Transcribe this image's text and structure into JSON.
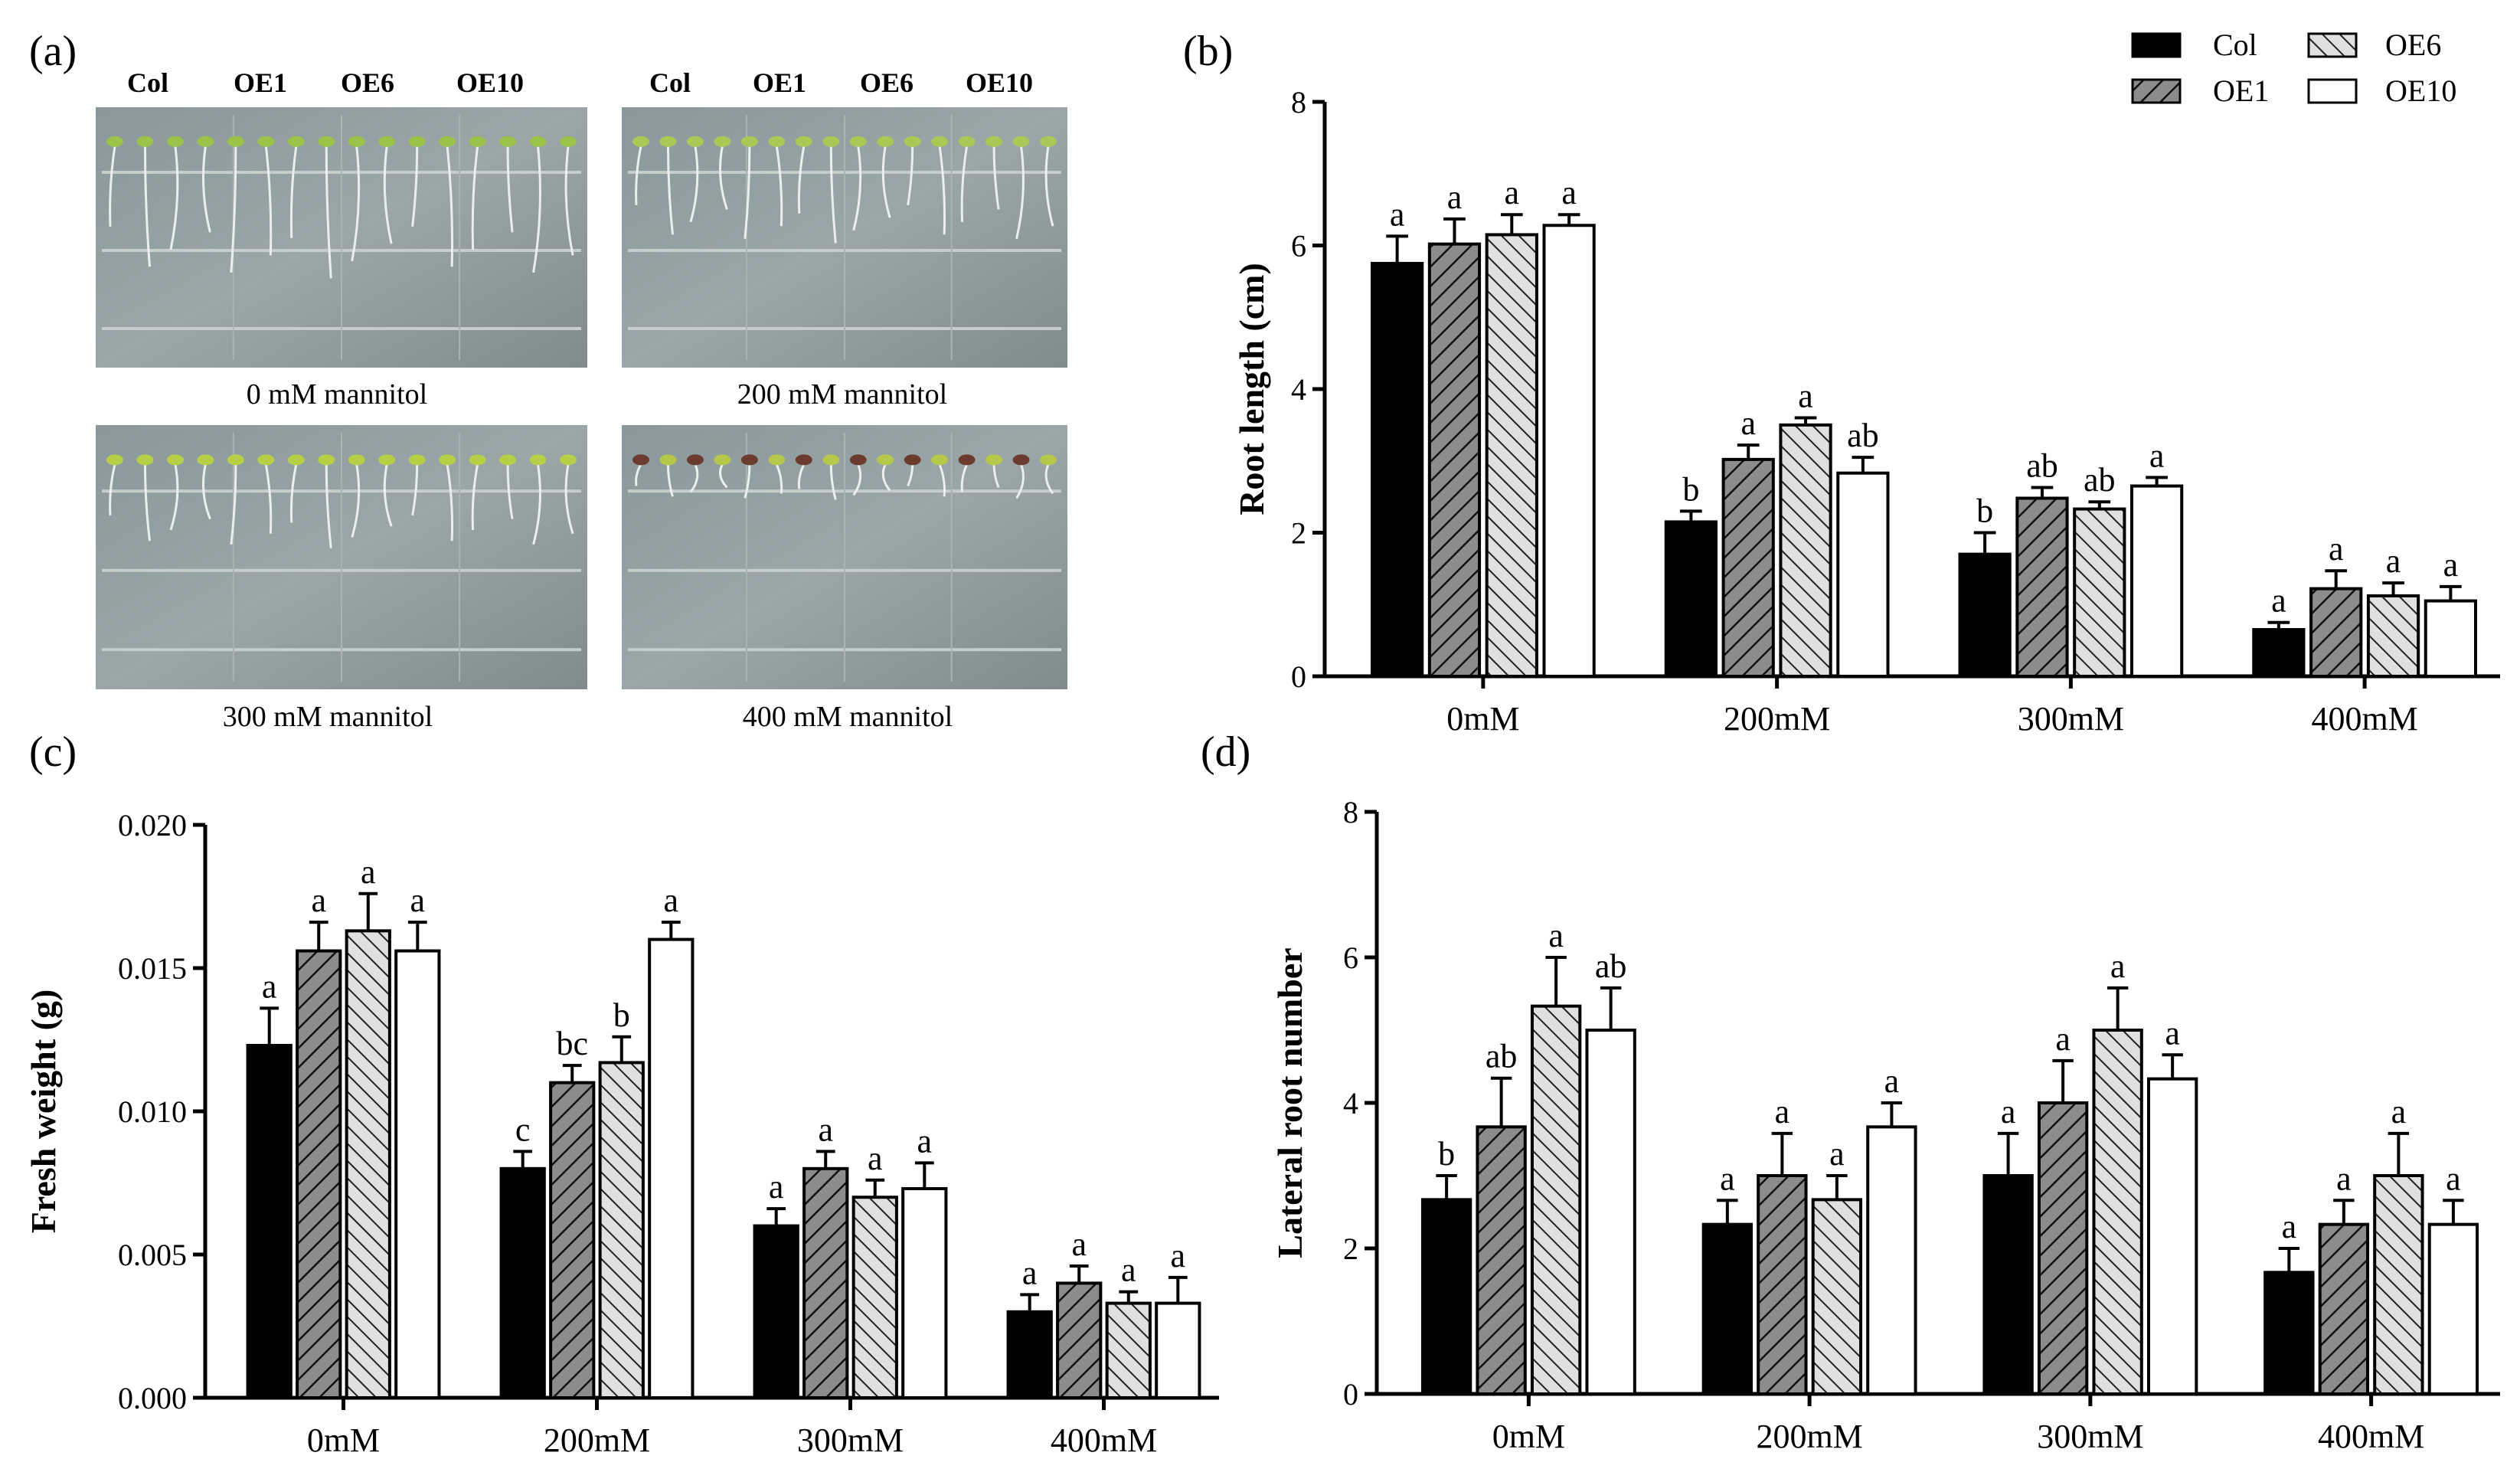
{
  "panel_letters": {
    "a": "(a)",
    "b": "(b)",
    "c": "(c)",
    "d": "(d)"
  },
  "photos": [
    {
      "caption": "0 mM mannitol",
      "labels": [
        "Col",
        "OE1",
        "OE6",
        "OE10"
      ]
    },
    {
      "caption": "200 mM mannitol",
      "labels": [
        "Col",
        "OE1",
        "OE6",
        "OE10"
      ]
    },
    {
      "caption": "300 mM mannitol",
      "labels": []
    },
    {
      "caption": "400 mM mannitol",
      "labels": []
    }
  ],
  "legend": [
    {
      "name": "Col",
      "fill": "solid-black"
    },
    {
      "name": "OE1",
      "fill": "dark-gray-hatch"
    },
    {
      "name": "OE6",
      "fill": "light-gray-hatch"
    },
    {
      "name": "OE10",
      "fill": "white"
    }
  ],
  "colors": {
    "col": "#000000",
    "oe1": "#8c8c8c",
    "oe6": "#d9d9d9",
    "oe10": "#ffffff"
  },
  "chart_data": [
    {
      "id": "b",
      "type": "bar",
      "ylabel": "Root length (cm)",
      "ylim": [
        0,
        8
      ],
      "yticks": [
        "0",
        "2",
        "4",
        "6",
        "8"
      ],
      "categories": [
        "0mM",
        "200mM",
        "300mM",
        "400mM"
      ],
      "series": [
        {
          "name": "Col",
          "values": [
            5.75,
            2.15,
            1.7,
            0.65
          ],
          "errors": [
            0.38,
            0.15,
            0.3,
            0.1
          ],
          "sig": [
            "a",
            "b",
            "b",
            "a"
          ]
        },
        {
          "name": "OE1",
          "values": [
            6.02,
            3.02,
            2.48,
            1.22
          ],
          "errors": [
            0.35,
            0.2,
            0.15,
            0.25
          ],
          "sig": [
            "a",
            "a",
            "ab",
            "a"
          ]
        },
        {
          "name": "OE6",
          "values": [
            6.15,
            3.5,
            2.33,
            1.12
          ],
          "errors": [
            0.28,
            0.1,
            0.1,
            0.18
          ],
          "sig": [
            "a",
            "a",
            "ab",
            "a"
          ]
        },
        {
          "name": "OE10",
          "values": [
            6.28,
            2.83,
            2.65,
            1.05
          ],
          "errors": [
            0.15,
            0.22,
            0.12,
            0.2
          ],
          "sig": [
            "a",
            "ab",
            "a",
            "a"
          ]
        }
      ]
    },
    {
      "id": "c",
      "type": "bar",
      "ylabel": "Fresh weight (g)",
      "ylim": [
        0,
        0.02
      ],
      "yticks": [
        "0.000",
        "0.005",
        "0.010",
        "0.015",
        "0.020"
      ],
      "categories": [
        "0mM",
        "200mM",
        "300mM",
        "400mM"
      ],
      "series": [
        {
          "name": "Col",
          "values": [
            0.0123,
            0.008,
            0.006,
            0.003
          ],
          "errors": [
            0.0013,
            0.0006,
            0.0006,
            0.0006
          ],
          "sig": [
            "a",
            "c",
            "a",
            "a"
          ]
        },
        {
          "name": "OE1",
          "values": [
            0.0156,
            0.011,
            0.008,
            0.004
          ],
          "errors": [
            0.001,
            0.0006,
            0.0006,
            0.0006
          ],
          "sig": [
            "a",
            "bc",
            "a",
            "a"
          ]
        },
        {
          "name": "OE6",
          "values": [
            0.0163,
            0.0117,
            0.007,
            0.0033
          ],
          "errors": [
            0.0013,
            0.0009,
            0.0006,
            0.0004
          ],
          "sig": [
            "a",
            "b",
            "a",
            "a"
          ]
        },
        {
          "name": "OE10",
          "values": [
            0.0156,
            0.016,
            0.0073,
            0.0033
          ],
          "errors": [
            0.001,
            0.0006,
            0.0009,
            0.0009
          ],
          "sig": [
            "a",
            "a",
            "a",
            "a"
          ]
        }
      ]
    },
    {
      "id": "d",
      "type": "bar",
      "ylabel": "Lateral root number",
      "ylim": [
        0,
        8
      ],
      "yticks": [
        "0",
        "2",
        "4",
        "6",
        "8"
      ],
      "categories": [
        "0mM",
        "200mM",
        "300mM",
        "400mM"
      ],
      "series": [
        {
          "name": "Col",
          "values": [
            2.67,
            2.33,
            3.0,
            1.67
          ],
          "errors": [
            0.33,
            0.33,
            0.58,
            0.33
          ],
          "sig": [
            "b",
            "a",
            "a",
            "a"
          ]
        },
        {
          "name": "OE1",
          "values": [
            3.67,
            3.0,
            4.0,
            2.33
          ],
          "errors": [
            0.67,
            0.58,
            0.58,
            0.33
          ],
          "sig": [
            "ab",
            "a",
            "a",
            "a"
          ]
        },
        {
          "name": "OE6",
          "values": [
            5.33,
            2.67,
            5.0,
            3.0
          ],
          "errors": [
            0.67,
            0.33,
            0.58,
            0.58
          ],
          "sig": [
            "a",
            "a",
            "a",
            "a"
          ]
        },
        {
          "name": "OE10",
          "values": [
            5.0,
            3.67,
            4.33,
            2.33
          ],
          "errors": [
            0.58,
            0.33,
            0.33,
            0.33
          ],
          "sig": [
            "ab",
            "a",
            "a",
            "a"
          ]
        }
      ]
    }
  ]
}
